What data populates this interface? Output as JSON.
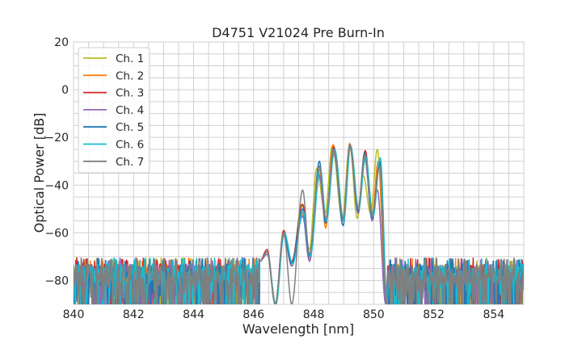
{
  "chart_data": {
    "type": "line",
    "title": "D4751 V21024 Pre Burn-In",
    "xlabel": "Wavelength [nm]",
    "ylabel": "Optical Power [dB]",
    "xlim": [
      840,
      855
    ],
    "ylim": [
      -90,
      20
    ],
    "xticks": [
      840,
      842,
      844,
      846,
      848,
      850,
      852,
      854
    ],
    "yticks": [
      20,
      0,
      -20,
      -40,
      -60,
      -80
    ],
    "x_minor_grid_step": 0.5,
    "y_minor_grid_step": 5,
    "grid": true,
    "legend_position": "top-left",
    "noise_floor": {
      "range_db": [
        -90,
        -72
      ],
      "typical_db": [
        -82,
        -73
      ],
      "left_nm": [
        840,
        846.2
      ],
      "right_nm": [
        850.45,
        855
      ]
    },
    "series": [
      {
        "name": "Ch. 1",
        "color": "#bcbd22",
        "points": [
          [
            846.2,
            -72
          ],
          [
            846.45,
            -69
          ],
          [
            846.72,
            -90
          ],
          [
            847.0,
            -61
          ],
          [
            847.27,
            -74
          ],
          [
            847.6,
            -48
          ],
          [
            847.86,
            -67
          ],
          [
            848.1,
            -33
          ],
          [
            848.38,
            -52
          ],
          [
            848.62,
            -23.5
          ],
          [
            848.95,
            -54
          ],
          [
            849.2,
            -23
          ],
          [
            849.45,
            -54
          ],
          [
            849.65,
            -36
          ],
          [
            849.9,
            -52
          ],
          [
            850.12,
            -25
          ],
          [
            850.42,
            -90
          ]
        ]
      },
      {
        "name": "Ch. 2",
        "color": "#ff7f0e",
        "points": [
          [
            846.2,
            -72
          ],
          [
            846.45,
            -68
          ],
          [
            846.72,
            -90
          ],
          [
            847.0,
            -60
          ],
          [
            847.27,
            -73
          ],
          [
            847.63,
            -52
          ],
          [
            847.86,
            -71
          ],
          [
            848.19,
            -35
          ],
          [
            848.4,
            -58
          ],
          [
            848.65,
            -23
          ],
          [
            848.98,
            -55
          ],
          [
            849.2,
            -22.5
          ],
          [
            849.48,
            -50
          ],
          [
            849.7,
            -26
          ],
          [
            849.95,
            -52
          ],
          [
            850.15,
            -30
          ],
          [
            850.42,
            -90
          ]
        ]
      },
      {
        "name": "Ch. 3",
        "color": "#d62728",
        "points": [
          [
            846.2,
            -72
          ],
          [
            846.45,
            -67
          ],
          [
            846.72,
            -90
          ],
          [
            847.0,
            -59
          ],
          [
            847.27,
            -72
          ],
          [
            847.63,
            -48
          ],
          [
            847.86,
            -69
          ],
          [
            848.19,
            -32
          ],
          [
            848.4,
            -55
          ],
          [
            848.67,
            -24
          ],
          [
            848.98,
            -55
          ],
          [
            849.21,
            -24
          ],
          [
            849.48,
            -50
          ],
          [
            849.72,
            -25.5
          ],
          [
            849.95,
            -53
          ],
          [
            850.2,
            -31
          ],
          [
            850.42,
            -90
          ]
        ]
      },
      {
        "name": "Ch. 4",
        "color": "#9467bd",
        "points": [
          [
            846.2,
            -72
          ],
          [
            846.45,
            -69
          ],
          [
            846.74,
            -90
          ],
          [
            847.0,
            -61
          ],
          [
            847.27,
            -74
          ],
          [
            847.63,
            -53
          ],
          [
            847.86,
            -72
          ],
          [
            848.19,
            -36
          ],
          [
            848.4,
            -56
          ],
          [
            848.67,
            -27
          ],
          [
            848.98,
            -55
          ],
          [
            849.21,
            -24
          ],
          [
            849.48,
            -52
          ],
          [
            849.7,
            -29
          ],
          [
            849.95,
            -55
          ],
          [
            850.12,
            -42
          ],
          [
            850.4,
            -90
          ]
        ]
      },
      {
        "name": "Ch. 5",
        "color": "#1f77b4",
        "points": [
          [
            846.2,
            -72
          ],
          [
            846.45,
            -68
          ],
          [
            846.72,
            -90
          ],
          [
            847.0,
            -60
          ],
          [
            847.27,
            -73
          ],
          [
            847.63,
            -50
          ],
          [
            847.86,
            -70
          ],
          [
            848.19,
            -30
          ],
          [
            848.4,
            -56
          ],
          [
            848.67,
            -24.5
          ],
          [
            848.98,
            -57
          ],
          [
            849.21,
            -23
          ],
          [
            849.48,
            -51
          ],
          [
            849.7,
            -26.5
          ],
          [
            849.95,
            -54
          ],
          [
            850.2,
            -30
          ],
          [
            850.42,
            -90
          ]
        ]
      },
      {
        "name": "Ch. 6",
        "color": "#17becf",
        "points": [
          [
            846.2,
            -72
          ],
          [
            846.45,
            -68
          ],
          [
            846.74,
            -90
          ],
          [
            847.02,
            -60
          ],
          [
            847.3,
            -73
          ],
          [
            847.65,
            -51
          ],
          [
            847.88,
            -70
          ],
          [
            848.22,
            -33
          ],
          [
            848.42,
            -55
          ],
          [
            848.7,
            -25
          ],
          [
            849.0,
            -55
          ],
          [
            849.23,
            -23.5
          ],
          [
            849.5,
            -50
          ],
          [
            849.73,
            -28
          ],
          [
            849.98,
            -53
          ],
          [
            850.22,
            -28.5
          ],
          [
            850.45,
            -90
          ]
        ]
      },
      {
        "name": "Ch. 7",
        "color": "#7f7f7f",
        "points": [
          [
            846.2,
            -72
          ],
          [
            846.45,
            -68
          ],
          [
            846.72,
            -90
          ],
          [
            847.0,
            -60
          ],
          [
            847.27,
            -90
          ],
          [
            847.63,
            -42
          ],
          [
            847.86,
            -69
          ],
          [
            848.19,
            -32
          ],
          [
            848.4,
            -54
          ],
          [
            848.67,
            -25
          ],
          [
            848.98,
            -54
          ],
          [
            849.21,
            -23
          ],
          [
            849.48,
            -50
          ],
          [
            849.7,
            -28
          ],
          [
            849.95,
            -53
          ],
          [
            850.2,
            -32
          ],
          [
            850.42,
            -90
          ]
        ]
      }
    ]
  }
}
